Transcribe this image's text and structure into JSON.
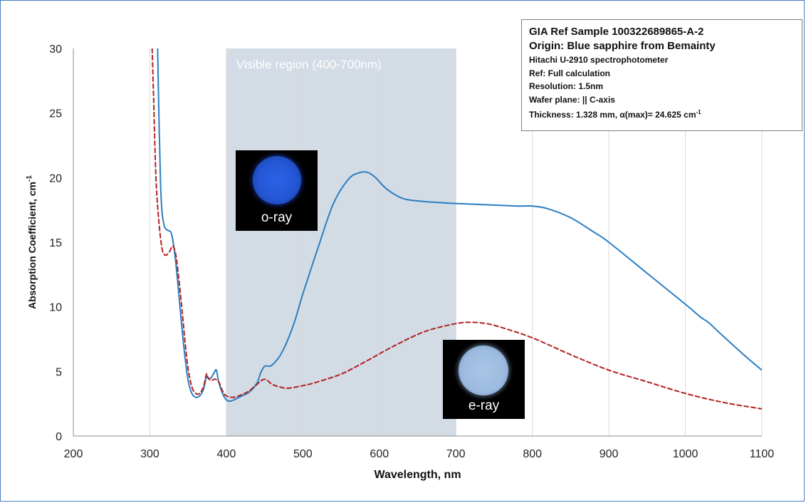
{
  "chart_data": {
    "type": "line",
    "xlabel": "Wavelength, nm",
    "ylabel": "Absorption Coefficient, cm",
    "ylabel_sup": "-1",
    "xlim": [
      200,
      1100
    ],
    "ylim": [
      0,
      30
    ],
    "xticks": [
      200,
      300,
      400,
      500,
      600,
      700,
      800,
      900,
      1000,
      1100
    ],
    "yticks": [
      0,
      5,
      10,
      15,
      20,
      25,
      30
    ],
    "grid": "vertical",
    "shaded_region": {
      "label": "Visible region (400-700nm)",
      "x0": 400,
      "x1": 700,
      "color": "#d3dbe4"
    },
    "series": [
      {
        "name": "o-ray",
        "color": "#2a7fc4",
        "style": "solid",
        "x": [
          310,
          312,
          314,
          316,
          318,
          320,
          324,
          328,
          332,
          336,
          340,
          345,
          350,
          355,
          360,
          365,
          370,
          374,
          376,
          380,
          384,
          387,
          390,
          395,
          400,
          405,
          410,
          420,
          430,
          440,
          445,
          450,
          455,
          460,
          470,
          480,
          490,
          500,
          520,
          540,
          560,
          575,
          585,
          595,
          610,
          630,
          650,
          670,
          700,
          740,
          780,
          800,
          820,
          850,
          880,
          900,
          950,
          1000,
          1020,
          1030,
          1050,
          1080,
          1100
        ],
        "y": [
          30.5,
          24.5,
          19.5,
          17.3,
          16.5,
          16.1,
          15.9,
          15.7,
          14.4,
          12.2,
          9.6,
          6.6,
          4.3,
          3.3,
          3.0,
          3.1,
          3.6,
          4.6,
          4.5,
          4.5,
          4.9,
          5.1,
          4.2,
          3.3,
          2.8,
          2.7,
          2.8,
          3.1,
          3.4,
          4.1,
          4.9,
          5.4,
          5.4,
          5.5,
          6.2,
          7.4,
          9.0,
          11.0,
          14.6,
          18.0,
          19.9,
          20.4,
          20.4,
          20.0,
          19.1,
          18.4,
          18.2,
          18.1,
          18.0,
          17.9,
          17.8,
          17.8,
          17.6,
          16.9,
          15.8,
          15.0,
          12.6,
          10.2,
          9.2,
          8.8,
          7.7,
          6.1,
          5.1
        ]
      },
      {
        "name": "e-ray",
        "color": "#b22222",
        "style": "dashed",
        "x": [
          303,
          305,
          308,
          312,
          316,
          320,
          325,
          330,
          334,
          338,
          342,
          346,
          350,
          355,
          360,
          365,
          370,
          374,
          376,
          380,
          385,
          390,
          395,
          400,
          410,
          420,
          430,
          440,
          450,
          460,
          470,
          480,
          500,
          520,
          550,
          580,
          620,
          660,
          700,
          720,
          740,
          760,
          800,
          850,
          900,
          950,
          1000,
          1050,
          1100
        ],
        "y": [
          30.0,
          26.0,
          20.0,
          16.5,
          14.5,
          14.0,
          14.2,
          14.7,
          14.0,
          12.1,
          9.8,
          7.3,
          5.2,
          3.8,
          3.3,
          3.3,
          3.8,
          4.8,
          4.5,
          4.3,
          4.4,
          4.2,
          3.5,
          3.1,
          3.0,
          3.2,
          3.5,
          4.0,
          4.4,
          4.0,
          3.8,
          3.7,
          3.9,
          4.2,
          4.8,
          5.7,
          7.0,
          8.1,
          8.7,
          8.8,
          8.7,
          8.4,
          7.6,
          6.3,
          5.1,
          4.2,
          3.3,
          2.6,
          2.1
        ]
      }
    ]
  },
  "infobox": {
    "title": "GIA Ref Sample 100322689865-A-2",
    "origin": "Origin: Blue sapphire from Bemainty",
    "instrument": "Hitachi  U-2910 spectrophotometer",
    "ref": "Ref: Full calculation",
    "resolution": "Resolution: 1.5nm",
    "wafer_plane": "Wafer plane:  || C-axis",
    "thickness": "Thickness:  1.328 mm, α(max)= 24.625 cm",
    "thickness_sup": "-1"
  },
  "insets": {
    "oray_label": "o-ray",
    "eray_label": "e-ray",
    "oray_color": "#2457d6",
    "eray_color": "#a9c6e6"
  }
}
